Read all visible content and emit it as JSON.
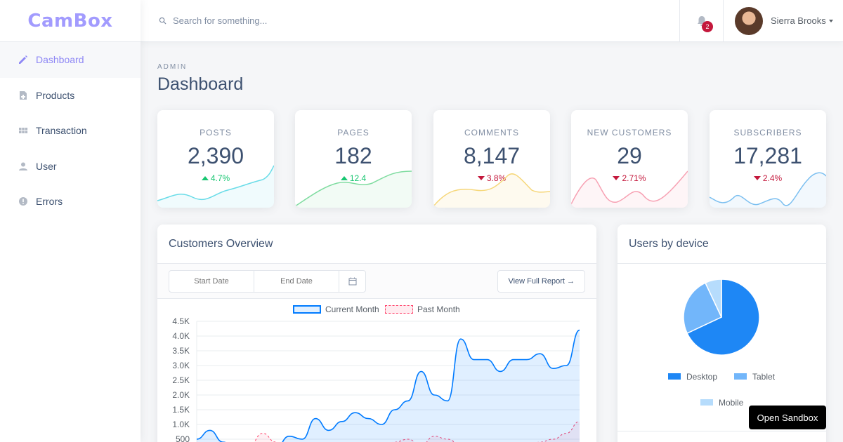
{
  "brand": "CamBox",
  "sidebar": {
    "items": [
      {
        "label": "Dashboard",
        "icon": "pencil-icon",
        "active": true
      },
      {
        "label": "Products",
        "icon": "note-add-icon"
      },
      {
        "label": "Transaction",
        "icon": "grid-icon"
      },
      {
        "label": "User",
        "icon": "person-icon"
      },
      {
        "label": "Errors",
        "icon": "error-icon"
      }
    ]
  },
  "topbar": {
    "search_placeholder": "Search for something...",
    "notification_count": "2",
    "user_name": "Sierra Brooks"
  },
  "page": {
    "subtitle": "ADMIN",
    "title": "Dashboard"
  },
  "stats": [
    {
      "label": "POSTS",
      "value": "2,390",
      "change": "4.7%",
      "direction": "up",
      "color": "#69dce8"
    },
    {
      "label": "PAGES",
      "value": "182",
      "change": "12.4",
      "direction": "up",
      "color": "#7fdca0"
    },
    {
      "label": "COMMENTS",
      "value": "8,147",
      "change": "3.8%",
      "direction": "down",
      "color": "#f6d77a"
    },
    {
      "label": "NEW CUSTOMERS",
      "value": "29",
      "change": "2.71%",
      "direction": "down",
      "color": "#f7a1b3"
    },
    {
      "label": "SUBSCRIBERS",
      "value": "17,281",
      "change": "2.4%",
      "direction": "down",
      "color": "#7bbff0"
    }
  ],
  "customers": {
    "title": "Customers Overview",
    "start_placeholder": "Start Date",
    "end_placeholder": "End Date",
    "report_label": "View Full Report →",
    "legend_current": "Current Month",
    "legend_past": "Past Month"
  },
  "devices": {
    "title": "Users by device",
    "legend": [
      "Desktop",
      "Tablet",
      "Mobile"
    ]
  },
  "sandbox_label": "Open Sandbox",
  "chart_data": [
    {
      "type": "line",
      "title": "",
      "ylim": [
        0,
        4500
      ],
      "yticks": [
        "4.5K",
        "4.0K",
        "3.5K",
        "3.0K",
        "2.5K",
        "2.0K",
        "1.5K",
        "1.0K",
        "500"
      ],
      "series": [
        {
          "name": "Current Month",
          "color": "#007bff",
          "values": [
            500,
            800,
            400,
            200,
            100,
            300,
            200,
            600,
            500,
            1200,
            800,
            1100,
            1400,
            1200,
            1000,
            1500,
            1800,
            2800,
            2000,
            1800,
            3900,
            3200,
            3200,
            2800,
            3200,
            3200,
            3400,
            2900,
            3000,
            4200
          ]
        },
        {
          "name": "Past Month",
          "color": "#ff4169",
          "values": [
            100,
            200,
            50,
            150,
            300,
            700,
            400,
            0,
            100,
            200,
            300,
            150,
            200,
            300,
            250,
            400,
            500,
            300,
            600,
            500,
            300,
            250,
            200,
            150,
            100,
            300,
            400,
            500,
            700,
            1100
          ]
        }
      ]
    },
    {
      "type": "pie",
      "categories": [
        "Desktop",
        "Tablet",
        "Mobile"
      ],
      "values": [
        68,
        25,
        7
      ],
      "colors": [
        "#1e87f5",
        "#72b6fa",
        "#b6dcfc"
      ]
    }
  ]
}
